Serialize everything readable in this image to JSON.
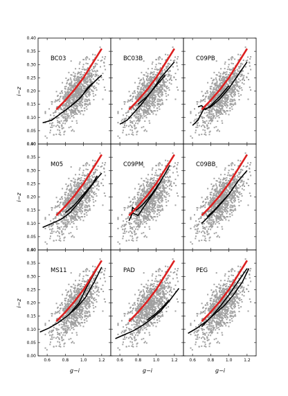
{
  "figure": {
    "xlabel": "g−i",
    "ylabel": "i−z"
  },
  "chart_data": {
    "type": "scatter",
    "layout": "3x3 grid of panels sharing axes",
    "xlim": [
      0.5,
      1.3
    ],
    "ylim": [
      0.0,
      0.4
    ],
    "xticks": [
      "0.6",
      "0.8",
      "1.0",
      "1.2"
    ],
    "yticks": [
      "0.00",
      "0.05",
      "0.10",
      "0.15",
      "0.20",
      "0.25",
      "0.30",
      "0.35",
      "0.40"
    ],
    "colors": {
      "points": "#a0a0a0",
      "observed_fit": "#dd2020",
      "models": "#000000"
    },
    "observed_fit_x": [
      0.7,
      0.8,
      0.9,
      1.0,
      1.1,
      1.2
    ],
    "observed_fit_y": [
      0.13,
      0.165,
      0.205,
      0.25,
      0.305,
      0.36
    ],
    "scatter_description": "grey galaxy sample, identical in all panels",
    "panels": [
      {
        "label": "BC03",
        "model_tracks": [
          {
            "x": [
              0.55,
              0.65,
              0.75,
              0.85,
              0.95,
              1.05,
              1.15,
              1.2
            ],
            "y": [
              0.08,
              0.09,
              0.115,
              0.14,
              0.17,
              0.21,
              0.245,
              0.26
            ]
          },
          {
            "x": [
              0.85,
              0.92,
              0.98,
              1.04,
              1.1
            ],
            "y": [
              0.14,
              0.16,
              0.18,
              0.21,
              0.23
            ]
          }
        ]
      },
      {
        "label": "BC03B",
        "model_tracks": [
          {
            "x": [
              0.6,
              0.68,
              0.76,
              0.85,
              0.95,
              1.05,
              1.15,
              1.2
            ],
            "y": [
              0.075,
              0.09,
              0.12,
              0.155,
              0.2,
              0.25,
              0.29,
              0.31
            ]
          },
          {
            "x": [
              0.8,
              0.9,
              1.0,
              1.1
            ],
            "y": [
              0.15,
              0.18,
              0.22,
              0.26
            ]
          }
        ]
      },
      {
        "label": "C09PB",
        "model_tracks": [
          {
            "x": [
              0.6,
              0.66,
              0.72,
              0.8,
              0.9,
              1.0,
              1.1,
              1.2
            ],
            "y": [
              0.07,
              0.09,
              0.13,
              0.14,
              0.17,
              0.21,
              0.26,
              0.31
            ]
          },
          {
            "x": [
              0.66,
              0.7,
              0.74,
              0.8,
              0.9,
              1.0
            ],
            "y": [
              0.14,
              0.145,
              0.13,
              0.145,
              0.18,
              0.22
            ]
          }
        ]
      },
      {
        "label": "M05",
        "model_tracks": [
          {
            "x": [
              0.55,
              0.65,
              0.75,
              0.85,
              0.95,
              1.05,
              1.15,
              1.2
            ],
            "y": [
              0.085,
              0.1,
              0.115,
              0.14,
              0.18,
              0.225,
              0.27,
              0.29
            ]
          },
          {
            "x": [
              0.8,
              0.9,
              1.0,
              1.1,
              1.15
            ],
            "y": [
              0.14,
              0.17,
              0.21,
              0.25,
              0.28
            ]
          }
        ]
      },
      {
        "label": "C09PM",
        "model_tracks": [
          {
            "x": [
              0.7,
              0.74,
              0.8,
              0.9,
              1.0,
              1.1,
              1.15
            ],
            "y": [
              0.11,
              0.14,
              0.13,
              0.18,
              0.23,
              0.29,
              0.32
            ]
          },
          {
            "x": [
              0.72,
              0.74,
              0.78,
              0.85,
              0.95,
              1.05
            ],
            "y": [
              0.12,
              0.16,
              0.15,
              0.17,
              0.21,
              0.26
            ]
          }
        ]
      },
      {
        "label": "C09BB",
        "model_tracks": [
          {
            "x": [
              0.7,
              0.76,
              0.82,
              0.9,
              1.0,
              1.1,
              1.2
            ],
            "y": [
              0.1,
              0.12,
              0.14,
              0.17,
              0.21,
              0.26,
              0.3
            ]
          },
          {
            "x": [
              0.76,
              0.84,
              0.92,
              1.0,
              1.08
            ],
            "y": [
              0.125,
              0.15,
              0.18,
              0.21,
              0.25
            ]
          }
        ]
      },
      {
        "label": "MS11",
        "model_tracks": [
          {
            "x": [
              0.52,
              0.62,
              0.72,
              0.82,
              0.92,
              1.02,
              1.12,
              1.2
            ],
            "y": [
              0.09,
              0.105,
              0.125,
              0.15,
              0.18,
              0.22,
              0.28,
              0.335
            ]
          },
          {
            "x": [
              0.85,
              0.95,
              1.0,
              1.05,
              1.1,
              1.15
            ],
            "y": [
              0.16,
              0.2,
              0.235,
              0.27,
              0.3,
              0.33
            ]
          }
        ]
      },
      {
        "label": "PAD",
        "model_tracks": [
          {
            "x": [
              0.55,
              0.65,
              0.75,
              0.85,
              0.95,
              1.05,
              1.15,
              1.25
            ],
            "y": [
              0.065,
              0.08,
              0.095,
              0.115,
              0.14,
              0.17,
              0.21,
              0.255
            ]
          },
          {
            "x": [
              0.9,
              0.98,
              1.06,
              1.14
            ],
            "y": [
              0.135,
              0.155,
              0.18,
              0.21
            ]
          }
        ]
      },
      {
        "label": "PEG",
        "model_tracks": [
          {
            "x": [
              0.55,
              0.65,
              0.75,
              0.85,
              0.95,
              1.05,
              1.15,
              1.22
            ],
            "y": [
              0.085,
              0.105,
              0.13,
              0.16,
              0.19,
              0.23,
              0.28,
              0.33
            ]
          },
          {
            "x": [
              0.7,
              0.8,
              0.9,
              1.0,
              1.1,
              1.2
            ],
            "y": [
              0.11,
              0.145,
              0.185,
              0.23,
              0.28,
              0.33
            ]
          }
        ]
      }
    ]
  }
}
